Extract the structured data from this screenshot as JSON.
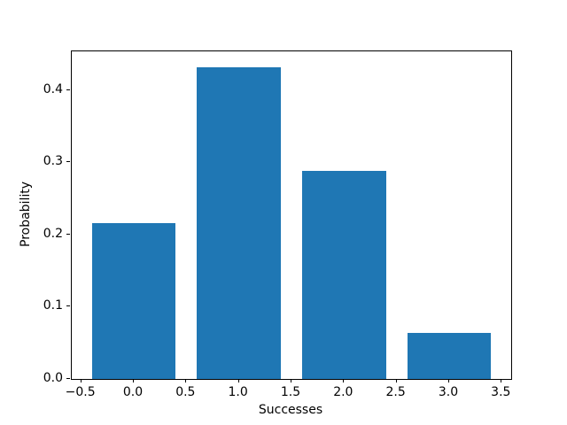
{
  "chart_data": {
    "type": "bar",
    "title": "",
    "xlabel": "Successes",
    "ylabel": "Probability",
    "categories": [
      0,
      1,
      2,
      3
    ],
    "values": [
      0.216,
      0.432,
      0.288,
      0.064
    ],
    "bar_width": 0.8,
    "bar_color": "#1f77b4",
    "xlim": [
      -0.59,
      3.59
    ],
    "ylim": [
      0,
      0.4536
    ],
    "xticks": [
      -0.5,
      0.0,
      0.5,
      1.0,
      1.5,
      2.0,
      2.5,
      3.0,
      3.5
    ],
    "xtick_labels": [
      "−0.5",
      "0.0",
      "0.5",
      "1.0",
      "1.5",
      "2.0",
      "2.5",
      "3.0",
      "3.5"
    ],
    "yticks": [
      0.0,
      0.1,
      0.2,
      0.3,
      0.4
    ],
    "ytick_labels": [
      "0.0",
      "0.1",
      "0.2",
      "0.3",
      "0.4"
    ],
    "grid": false,
    "legend": null,
    "background_color": "#ffffff",
    "spine_color": "#000000"
  }
}
